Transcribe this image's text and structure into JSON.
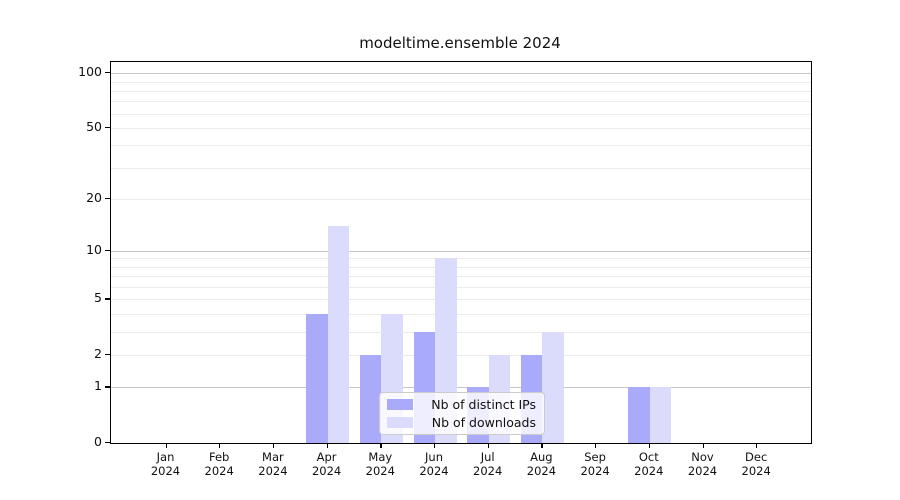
{
  "title": "modeltime.ensemble 2024",
  "legend": {
    "items": [
      {
        "label": "Nb of distinct IPs",
        "color": "#aaaafa"
      },
      {
        "label": "Nb of downloads",
        "color": "#dbdbfb"
      }
    ]
  },
  "chart_data": {
    "type": "bar",
    "title": "modeltime.ensemble 2024",
    "categories": [
      "Jan 2024",
      "Feb 2024",
      "Mar 2024",
      "Apr 2024",
      "May 2024",
      "Jun 2024",
      "Jul 2024",
      "Aug 2024",
      "Sep 2024",
      "Oct 2024",
      "Nov 2024",
      "Dec 2024"
    ],
    "series": [
      {
        "name": "Nb of distinct IPs",
        "color": "#aaaafa",
        "values": [
          0,
          0,
          0,
          4,
          2,
          3,
          1,
          2,
          0,
          1,
          0,
          0
        ]
      },
      {
        "name": "Nb of downloads",
        "color": "#dbdbfb",
        "values": [
          0,
          0,
          0,
          14,
          4,
          9,
          2,
          3,
          0,
          1,
          0,
          0
        ]
      }
    ],
    "xlabel": "",
    "ylabel": "",
    "yscale": "log1p",
    "ylim": [
      0,
      115
    ],
    "yticks": [
      0,
      1,
      2,
      5,
      10,
      20,
      50,
      100
    ],
    "major_gridlines": [
      1,
      10,
      100
    ],
    "minor_gridlines": [
      2,
      3,
      4,
      5,
      6,
      7,
      8,
      9,
      20,
      30,
      40,
      50,
      60,
      70,
      80,
      90
    ],
    "grid": true,
    "legend_position": "inside lower center"
  },
  "colors": {
    "major_grid": "#c6c6c6",
    "minor_grid": "#ebebeb",
    "spine": "#000000",
    "background": "#ffffff"
  }
}
